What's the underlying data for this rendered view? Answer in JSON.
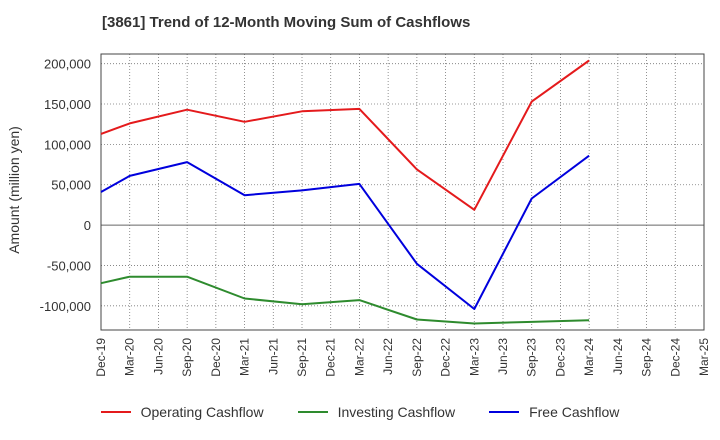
{
  "chart_data": {
    "type": "line",
    "title": "[3861]  Trend of 12-Month Moving Sum of Cashflows",
    "ylabel": "Amount (million yen)",
    "xlabel": "",
    "categories": [
      "Dec-19",
      "Mar-20",
      "Jun-20",
      "Sep-20",
      "Dec-20",
      "Mar-21",
      "Jun-21",
      "Sep-21",
      "Dec-21",
      "Mar-22",
      "Jun-22",
      "Sep-22",
      "Dec-22",
      "Mar-23",
      "Jun-23",
      "Sep-23",
      "Dec-23",
      "Mar-24",
      "Jun-24",
      "Sep-24",
      "Dec-24",
      "Mar-25"
    ],
    "ylim": [
      -130000,
      212000
    ],
    "yticks": [
      200000,
      150000,
      100000,
      50000,
      0,
      -50000,
      -100000
    ],
    "ytick_labels": [
      "200,000",
      "150,000",
      "100,000",
      "50,000",
      "0",
      "-50,000",
      "-100,000"
    ],
    "grid": true,
    "legend_position": "bottom",
    "series": [
      {
        "name": "Operating Cashflow",
        "color": "#e41a1c",
        "values": [
          113000,
          126000,
          null,
          143000,
          null,
          128000,
          null,
          141000,
          null,
          144000,
          null,
          69000,
          null,
          19000,
          null,
          153000,
          null,
          204000,
          null,
          null,
          null,
          null
        ]
      },
      {
        "name": "Investing Cashflow",
        "color": "#2e8b2e",
        "values": [
          -72000,
          -64000,
          null,
          -64000,
          null,
          -91000,
          null,
          -98000,
          null,
          -93000,
          null,
          -117000,
          null,
          -122000,
          null,
          -120000,
          null,
          -118000,
          null,
          null,
          null,
          null
        ]
      },
      {
        "name": "Free Cashflow",
        "color": "#0000dd",
        "values": [
          41000,
          61000,
          null,
          78000,
          null,
          37000,
          null,
          43000,
          null,
          51000,
          null,
          -48000,
          null,
          -104000,
          null,
          33000,
          null,
          86000,
          null,
          null,
          null,
          null
        ]
      }
    ]
  }
}
